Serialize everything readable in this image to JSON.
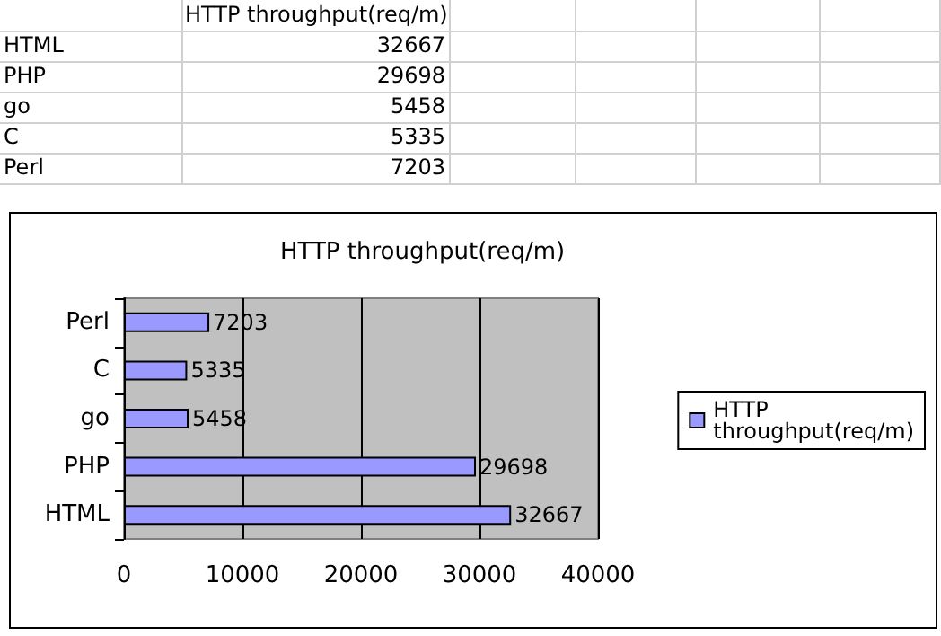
{
  "chart_data": {
    "type": "bar",
    "title": "HTTP throughput(req/m)",
    "orientation": "horizontal",
    "categories": [
      "Perl",
      "C",
      "go",
      "PHP",
      "HTML"
    ],
    "series": [
      {
        "name": "HTTP throughput(req/m)",
        "color": "#9999ff",
        "values": [
          7203,
          5335,
          5458,
          29698,
          32667
        ]
      }
    ],
    "annotations": [
      "32667",
      "29698",
      "5458",
      "5335",
      "7203"
    ],
    "xlim": [
      0,
      40000
    ],
    "xticks": [
      0,
      10000,
      20000,
      30000,
      40000
    ],
    "grid": "x",
    "legend": "right",
    "data_labels": true
  }
}
